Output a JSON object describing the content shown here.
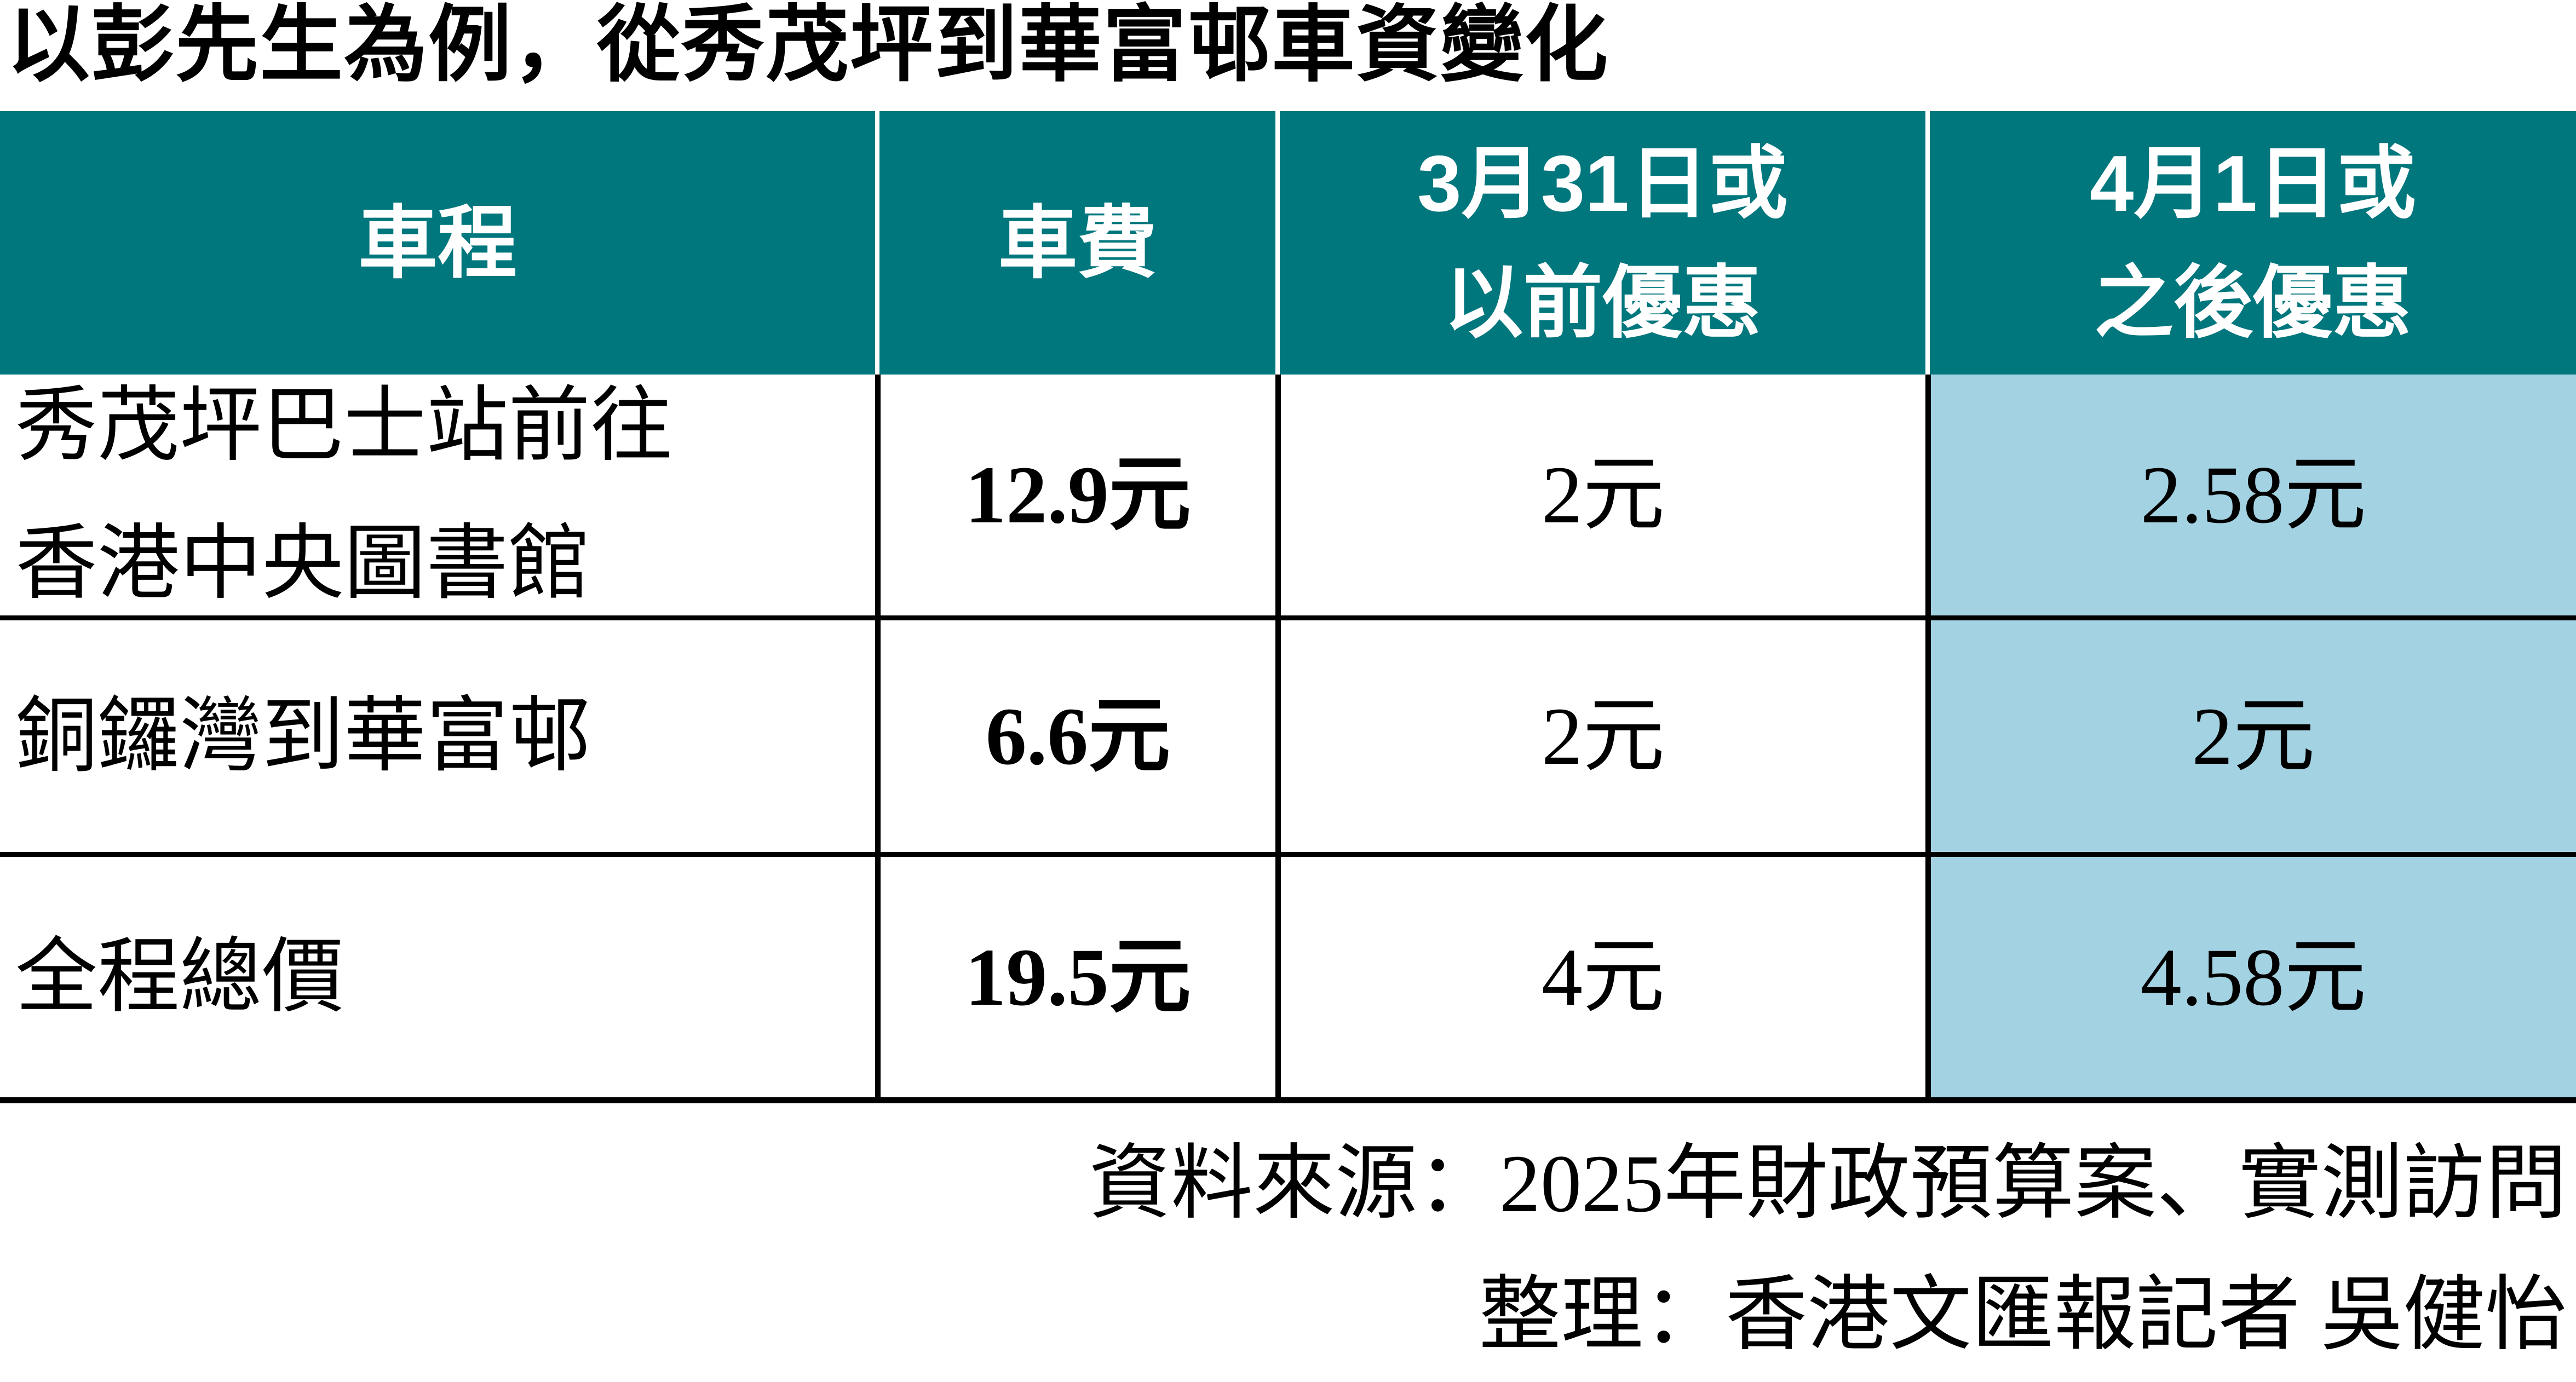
{
  "title": "以彭先生為例，從秀茂坪到華富邨車資變化",
  "colors": {
    "header_bg": "#00767D",
    "header_text": "#FFFFFF",
    "highlight_bg": "#A3D3E3",
    "body_text": "#000000",
    "border": "#000000"
  },
  "table": {
    "headers": {
      "route": "車程",
      "fare": "車費",
      "before_line1": "3月31日或",
      "before_line2": "以前優惠",
      "after_line1": "4月1日或",
      "after_line2": "之後優惠"
    },
    "rows": [
      {
        "route_line1": "秀茂坪巴士站前往",
        "route_line2": "香港中央圖書館",
        "fare": "12.9元",
        "before": "2元",
        "after": "2.58元"
      },
      {
        "route_line1": "銅鑼灣到華富邨",
        "route_line2": "",
        "fare": "6.6元",
        "before": "2元",
        "after": "2元"
      },
      {
        "route_line1": "全程總價",
        "route_line2": "",
        "fare": "19.5元",
        "before": "4元",
        "after": "4.58元"
      }
    ]
  },
  "footer": {
    "source": "資料來源：2025年財政預算案、實測訪問",
    "credit": "整理：香港文匯報記者 吳健怡"
  },
  "chart_data": {
    "type": "table",
    "title": "以彭先生為例，從秀茂坪到華富邨車資變化",
    "columns": [
      "車程",
      "車費",
      "3月31日或以前優惠",
      "4月1日或之後優惠"
    ],
    "rows": [
      [
        "秀茂坪巴士站前往香港中央圖書館",
        "12.9元",
        "2元",
        "2.58元"
      ],
      [
        "銅鑼灣到華富邨",
        "6.6元",
        "2元",
        "2元"
      ],
      [
        "全程總價",
        "19.5元",
        "4元",
        "4.58元"
      ]
    ],
    "highlight_column": "4月1日或之後優惠",
    "notes": [
      "資料來源：2025年財政預算案、實測訪問",
      "整理：香港文匯報記者 吳健怡"
    ]
  }
}
